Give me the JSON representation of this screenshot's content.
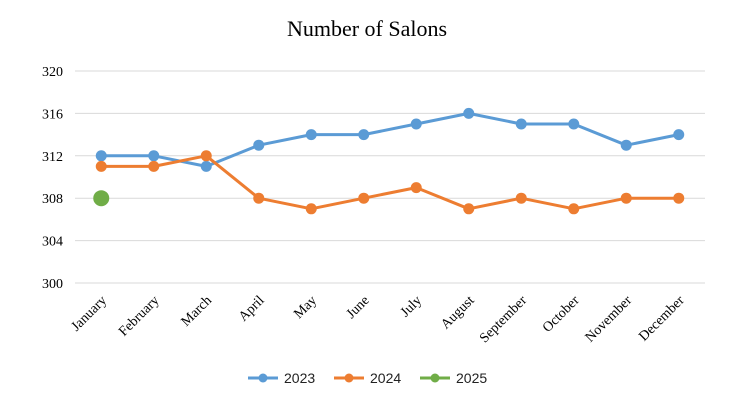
{
  "chart_data": {
    "type": "line",
    "title": "Number of Salons",
    "categories": [
      "January",
      "February",
      "March",
      "April",
      "May",
      "June",
      "July",
      "August",
      "September",
      "October",
      "November",
      "December"
    ],
    "y_ticks": [
      "300",
      "304",
      "308",
      "312",
      "316",
      "320"
    ],
    "ylim": [
      300,
      320
    ],
    "grid": true,
    "legend_position": "bottom",
    "series": [
      {
        "name": "2023",
        "color": "#5B9BD5",
        "values": [
          312,
          312,
          311,
          313,
          314,
          314,
          315,
          316,
          315,
          315,
          313,
          314
        ]
      },
      {
        "name": "2024",
        "color": "#ED7D31",
        "values": [
          311,
          311,
          312,
          308,
          307,
          308,
          309,
          307,
          308,
          307,
          308,
          308
        ]
      },
      {
        "name": "2025",
        "color": "#70AD47",
        "values": [
          308,
          null,
          null,
          null,
          null,
          null,
          null,
          null,
          null,
          null,
          null,
          null
        ]
      }
    ]
  }
}
